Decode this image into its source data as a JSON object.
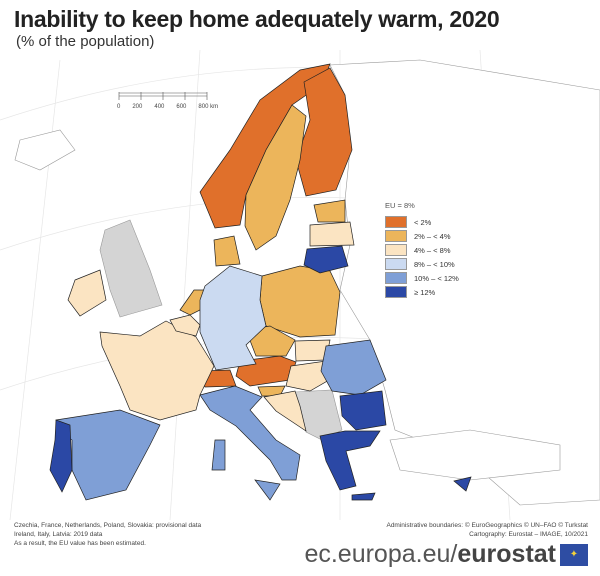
{
  "title": "Inability to keep home adequately warm, 2020",
  "subtitle": "(% of the population)",
  "scale_bar": {
    "labels": [
      "0",
      "200",
      "400",
      "600",
      "800 km"
    ]
  },
  "legend": {
    "header": "EU = 8%",
    "items": [
      {
        "label": "< 2%",
        "color": "#e0702b"
      },
      {
        "label": "2% – < 4%",
        "color": "#ecb55b"
      },
      {
        "label": "4% – < 8%",
        "color": "#fbe4c2"
      },
      {
        "label": "8% – < 10%",
        "color": "#cbdaf1"
      },
      {
        "label": "10% – < 12%",
        "color": "#7f9fd6"
      },
      {
        "label": "≥ 12%",
        "color": "#2b48a5"
      }
    ],
    "no_data_color": "#d4d4d4"
  },
  "map_data": {
    "NO": 0,
    "FI": 0,
    "CH": 0,
    "AT": 0,
    "SE": 1,
    "DK": 1,
    "EE": 1,
    "NL": 1,
    "PL": 1,
    "CZ": 1,
    "SI": 1,
    "IE": 2,
    "FR": 2,
    "BE": 2,
    "LV": 2,
    "SK": 2,
    "HU": 2,
    "HR": 2,
    "DE": 3,
    "ES": 4,
    "IT": 4,
    "RO": 4,
    "LT": 5,
    "PT": 5,
    "BG": 5,
    "EL": 5,
    "CY": 5
  },
  "notes": [
    "Czechia, France, Netherlands, Poland, Slovakia: provisional data",
    "Ireland, Italy, Latvia: 2019 data",
    "As a result, the EU value has been estimated."
  ],
  "credits": [
    "Administrative boundaries: © EuroGeographics © UN–FAO © Turkstat",
    "Cartography: Eurostat – IMAGE, 10/2021"
  ],
  "brand": {
    "prefix": "ec.europa.eu/",
    "name": "eurostat"
  }
}
